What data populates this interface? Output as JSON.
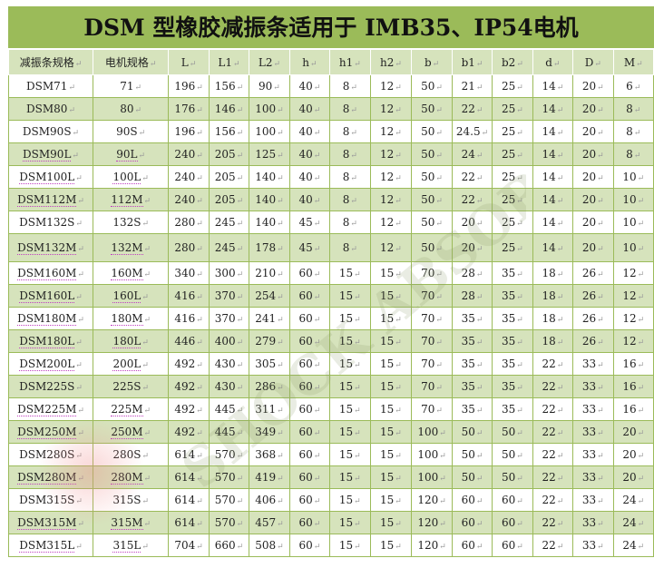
{
  "title": "DSM 型橡胶减振条适用于 IMB35、IP54电机",
  "colors": {
    "title_bg": "#9bbb59",
    "row_alt": "#d6e3bc"
  },
  "columns": [
    "减振条规格",
    "电机规格",
    "L",
    "L1",
    "L2",
    "h",
    "h1",
    "h2",
    "b",
    "b1",
    "b2",
    "d",
    "D",
    "M"
  ],
  "rows": [
    [
      "DSM71",
      "71",
      "196",
      "156",
      "90",
      "40",
      "8",
      "12",
      "50",
      "21",
      "25",
      "14",
      "20",
      "6"
    ],
    [
      "DSM80",
      "80",
      "176",
      "146",
      "100",
      "40",
      "8",
      "12",
      "50",
      "22",
      "25",
      "14",
      "20",
      "8"
    ],
    [
      "DSM90S",
      "90S",
      "196",
      "156",
      "100",
      "40",
      "8",
      "12",
      "50",
      "24.5",
      "25",
      "14",
      "20",
      "8"
    ],
    [
      "DSM90L",
      "90L",
      "240",
      "205",
      "125",
      "40",
      "8",
      "12",
      "50",
      "24",
      "25",
      "14",
      "20",
      "8"
    ],
    [
      "DSM100L",
      "100L",
      "240",
      "205",
      "140",
      "40",
      "8",
      "12",
      "50",
      "22",
      "25",
      "14",
      "20",
      "10"
    ],
    [
      "DSM112M",
      "112M",
      "240",
      "205",
      "140",
      "40",
      "8",
      "12",
      "50",
      "22",
      "25",
      "14",
      "20",
      "10"
    ],
    [
      "DSM132S",
      "132S",
      "280",
      "245",
      "140",
      "45",
      "8",
      "12",
      "50",
      "20",
      "25",
      "14",
      "20",
      "10"
    ],
    [
      "DSM132M",
      "132M",
      "280",
      "245",
      "178",
      "45",
      "8",
      "12",
      "50",
      "20",
      "25",
      "14",
      "20",
      "10"
    ],
    [
      "DSM160M",
      "160M",
      "340",
      "300",
      "210",
      "60",
      "15",
      "15",
      "70",
      "28",
      "35",
      "18",
      "26",
      "12"
    ],
    [
      "DSM160L",
      "160L",
      "416",
      "370",
      "254",
      "60",
      "15",
      "15",
      "70",
      "28",
      "35",
      "18",
      "26",
      "12"
    ],
    [
      "DSM180M",
      "180M",
      "416",
      "370",
      "241",
      "60",
      "15",
      "15",
      "70",
      "35",
      "35",
      "18",
      "26",
      "12"
    ],
    [
      "DSM180L",
      "180L",
      "446",
      "400",
      "279",
      "60",
      "15",
      "15",
      "70",
      "35",
      "35",
      "18",
      "26",
      "12"
    ],
    [
      "DSM200L",
      "200L",
      "492",
      "430",
      "305",
      "60",
      "15",
      "15",
      "70",
      "35",
      "35",
      "22",
      "33",
      "16"
    ],
    [
      "DSM225S",
      "225S",
      "492",
      "430",
      "286",
      "60",
      "15",
      "15",
      "70",
      "35",
      "35",
      "22",
      "33",
      "16"
    ],
    [
      "DSM225M",
      "225M",
      "492",
      "445",
      "311",
      "60",
      "15",
      "15",
      "70",
      "35",
      "35",
      "22",
      "33",
      "16"
    ],
    [
      "DSM250M",
      "250M",
      "492",
      "445",
      "349",
      "60",
      "15",
      "15",
      "100",
      "50",
      "50",
      "22",
      "33",
      "20"
    ],
    [
      "DSM280S",
      "280S",
      "614",
      "570",
      "368",
      "60",
      "15",
      "15",
      "100",
      "50",
      "50",
      "22",
      "33",
      "20"
    ],
    [
      "DSM280M",
      "280M",
      "614",
      "570",
      "419",
      "60",
      "15",
      "15",
      "100",
      "50",
      "50",
      "22",
      "33",
      "20"
    ],
    [
      "DSM315S",
      "315S",
      "614",
      "570",
      "406",
      "60",
      "15",
      "15",
      "120",
      "60",
      "60",
      "22",
      "33",
      "24"
    ],
    [
      "DSM315M",
      "315M",
      "614",
      "570",
      "457",
      "60",
      "15",
      "15",
      "120",
      "60",
      "60",
      "22",
      "33",
      "24"
    ],
    [
      "DSM315L",
      "315L",
      "704",
      "660",
      "508",
      "60",
      "15",
      "15",
      "120",
      "60",
      "60",
      "22",
      "33",
      "24"
    ]
  ]
}
